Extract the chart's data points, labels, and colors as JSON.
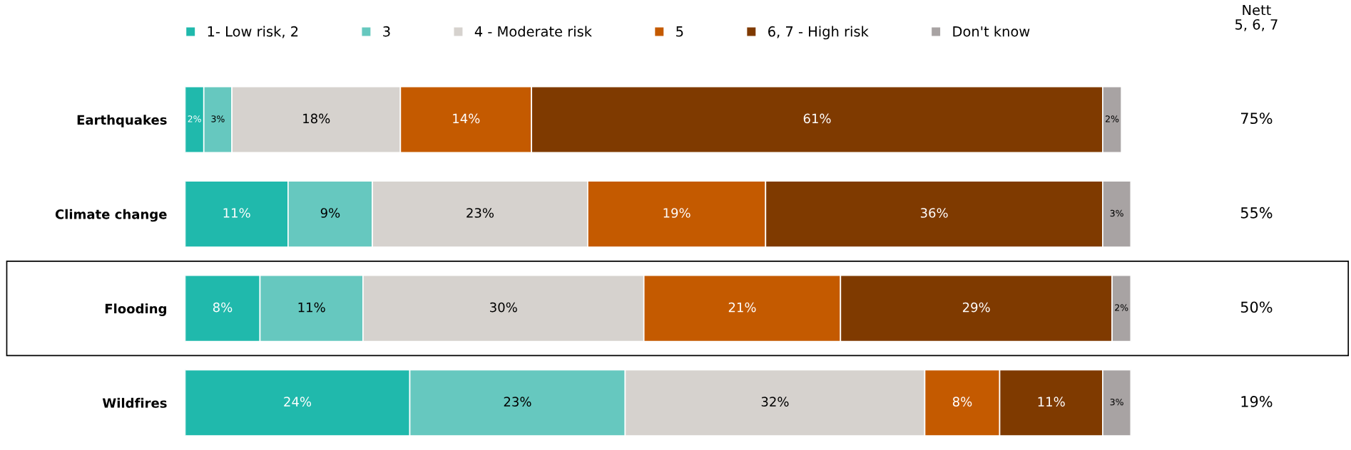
{
  "chart_data": {
    "type": "bar",
    "orientation": "horizontal",
    "stacked": true,
    "legend": "top",
    "grid": false,
    "categories": [
      "Earthquakes",
      "Climate change",
      "Flooding",
      "Wildfires"
    ],
    "series": [
      {
        "name": "1- Low risk, 2",
        "color": "#20b9ac",
        "values": [
          2,
          11,
          8,
          24
        ],
        "value_labels": [
          "2%",
          "11%",
          "8%",
          "24%"
        ]
      },
      {
        "name": "3",
        "color": "#66c8bf",
        "values": [
          3,
          9,
          11,
          23
        ],
        "value_labels": [
          "3%",
          "9%",
          "11%",
          "23%"
        ]
      },
      {
        "name": "4 - Moderate risk",
        "color": "#d6d2ce",
        "values": [
          18,
          23,
          30,
          32
        ],
        "value_labels": [
          "18%",
          "23%",
          "30%",
          "32%"
        ]
      },
      {
        "name": "5",
        "color": "#c45a00",
        "values": [
          14,
          19,
          21,
          8
        ],
        "value_labels": [
          "14%",
          "19%",
          "21%",
          "8%"
        ]
      },
      {
        "name": "6, 7 - High risk",
        "color": "#7f3a00",
        "values": [
          61,
          36,
          29,
          11
        ],
        "value_labels": [
          "61%",
          "36%",
          "29%",
          "11%"
        ]
      },
      {
        "name": "Don't know",
        "color": "#a8a3a3",
        "values": [
          2,
          3,
          2,
          3
        ],
        "value_labels": [
          "2%",
          "3%",
          "2%",
          "3%"
        ]
      }
    ],
    "annotations": [
      "Nett\n5, 6, 7",
      "75%",
      "55%",
      "50%",
      "19%"
    ]
  }
}
